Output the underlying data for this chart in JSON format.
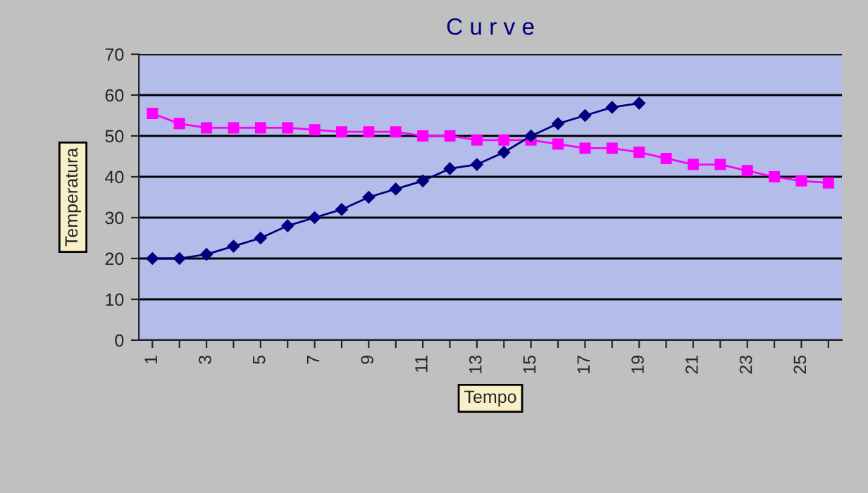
{
  "chart_data": {
    "type": "line",
    "title": "C u r v e",
    "xlabel": "Tempo",
    "ylabel": "Temperatura",
    "categories": [
      "1",
      null,
      "3",
      null,
      "5",
      null,
      "7",
      null,
      "9",
      null,
      "11",
      null,
      "13",
      null,
      "15",
      null,
      "17",
      null,
      "19",
      null,
      "21",
      null,
      "23",
      null,
      "25",
      null
    ],
    "series": [
      {
        "color": "#000080",
        "marker": "diamond",
        "values": [
          20,
          20,
          21,
          23,
          25,
          28,
          30,
          32,
          35,
          37,
          39,
          42,
          43,
          46,
          50,
          53,
          55,
          57,
          58,
          null,
          null,
          null,
          null,
          null,
          null,
          null
        ]
      },
      {
        "color": "#ff00ff",
        "marker": "square",
        "values": [
          55.5,
          53,
          52,
          52,
          52,
          52,
          51.5,
          51,
          51,
          51,
          50,
          50,
          49,
          49,
          49,
          48,
          47,
          47,
          46,
          44.5,
          43,
          43,
          41.5,
          40,
          39,
          38.5
        ]
      }
    ],
    "ylim": [
      0,
      70
    ],
    "yticks": [
      0,
      10,
      20,
      30,
      40,
      50,
      60,
      70
    ],
    "grid": "y",
    "legend": false
  }
}
